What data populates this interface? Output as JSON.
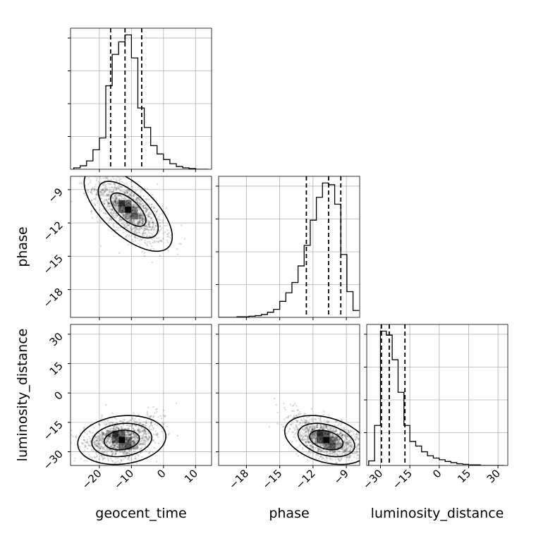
{
  "chart_data": {
    "type": "corner",
    "parameters": [
      "geocent_time",
      "phase",
      "luminosity_distance"
    ],
    "axis_labels": [
      "geocent_time",
      "phase",
      "luminosity_distance"
    ],
    "ranges": [
      [
        -29,
        15
      ],
      [
        -20.5,
        -7.8
      ],
      [
        -37,
        35
      ]
    ],
    "ticks": [
      [
        "−20",
        "−10",
        "0",
        "10"
      ],
      [
        "−18",
        "−15",
        "−12",
        "−9"
      ],
      [
        "−30",
        "−15",
        "0",
        "15",
        "30"
      ]
    ],
    "tick_values": [
      [
        -20,
        -10,
        0,
        10
      ],
      [
        -18,
        -15,
        -12,
        -9
      ],
      [
        -30,
        -15,
        0,
        15,
        30
      ]
    ],
    "grid": true,
    "quantiles": {
      "geocent_time": [
        -16.5,
        -12.0,
        -6.8
      ],
      "phase": [
        -12.6,
        -10.6,
        -9.5
      ],
      "luminosity_distance": [
        -29.5,
        -25.5,
        -17.5
      ]
    },
    "histograms": {
      "geocent_time": {
        "bin_edges": [
          -28,
          -26,
          -24,
          -22,
          -20,
          -18,
          -16,
          -14,
          -12,
          -10,
          -8,
          -6,
          -4,
          -2,
          0,
          2,
          4,
          6,
          8,
          10,
          12,
          14
        ],
        "counts": [
          2,
          5,
          12,
          28,
          45,
          120,
          165,
          183,
          193,
          160,
          88,
          60,
          34,
          22,
          14,
          8,
          4,
          2,
          1,
          0,
          0
        ]
      },
      "phase": {
        "bin_edges": [
          -20.5,
          -19.95,
          -19.4,
          -18.85,
          -18.3,
          -17.75,
          -17.2,
          -16.65,
          -16.1,
          -15.55,
          -15.0,
          -14.45,
          -13.9,
          -13.35,
          -12.8,
          -12.25,
          -11.7,
          -11.15,
          -10.6,
          -10.05,
          -9.5,
          -8.95,
          -8.4,
          -7.85
        ],
        "counts": [
          0,
          0,
          0,
          1,
          1,
          2,
          3,
          5,
          9,
          14,
          28,
          43,
          61,
          90,
          126,
          170,
          210,
          235,
          232,
          198,
          110,
          45,
          12
        ]
      },
      "luminosity_distance": {
        "bin_edges": [
          -36,
          -33,
          -30,
          -27,
          -24,
          -21,
          -18,
          -15,
          -12,
          -9,
          -6,
          -3,
          0,
          3,
          6,
          9,
          12,
          15,
          18,
          21,
          24,
          27,
          30,
          33
        ],
        "counts": [
          8,
          70,
          235,
          228,
          185,
          128,
          70,
          42,
          34,
          24,
          17,
          13,
          10,
          7,
          5,
          3,
          2,
          1,
          1,
          0,
          0,
          0,
          0
        ]
      }
    },
    "joint": {
      "phase_vs_geocent_time": {
        "mean": [
          -11,
          -10.8
        ],
        "std": [
          5.5,
          1.5
        ],
        "corr": -0.65
      },
      "luminosity_distance_vs_geocent_time": {
        "mean": [
          -13,
          -24
        ],
        "std": [
          5.5,
          5.0
        ],
        "corr": 0.15
      },
      "luminosity_distance_vs_phase": {
        "mean": [
          -10.8,
          -24
        ],
        "std": [
          1.5,
          5.0
        ],
        "corr": -0.35
      }
    }
  }
}
